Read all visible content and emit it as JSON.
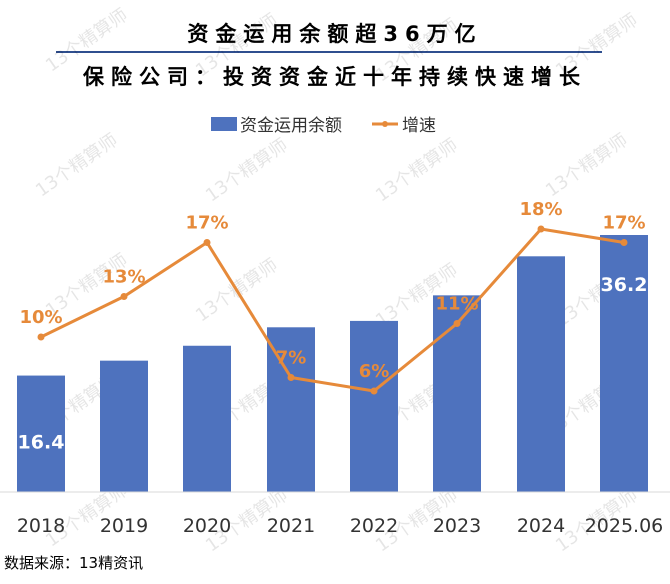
{
  "header": {
    "title_line1": "资金运用余额超36万亿",
    "title_line2": "保险公司：投资资金近十年持续快速增长"
  },
  "source_text": "数据来源：13精资讯",
  "watermark": "13个精算师",
  "colors": {
    "bar": "#4e72be",
    "line": "#e68a3a",
    "label_line": "#e68a3a",
    "label_bar": "#ffffff"
  },
  "chart_data": {
    "type": "bar",
    "categories": [
      "2018",
      "2019",
      "2020",
      "2021",
      "2022",
      "2023",
      "2024",
      "2025.06"
    ],
    "series": [
      {
        "name": "资金运用余额",
        "type": "bar",
        "axis": "left",
        "values": [
          16.4,
          18.5,
          20.6,
          23.2,
          24.1,
          27.7,
          33.2,
          36.2
        ],
        "data_labels": [
          "16.4",
          "",
          "",
          "",
          "",
          "",
          "",
          "36.2"
        ]
      },
      {
        "name": "增速",
        "type": "line",
        "axis": "right",
        "values": [
          10,
          13,
          17,
          7,
          6,
          11,
          18,
          17
        ],
        "data_labels": [
          "10%",
          "13%",
          "17%",
          "7%",
          "6%",
          "11%",
          "18%",
          "17%"
        ]
      }
    ],
    "legend": {
      "position": "top",
      "entries": [
        "资金运用余额",
        "增速"
      ]
    },
    "grid": false
  }
}
